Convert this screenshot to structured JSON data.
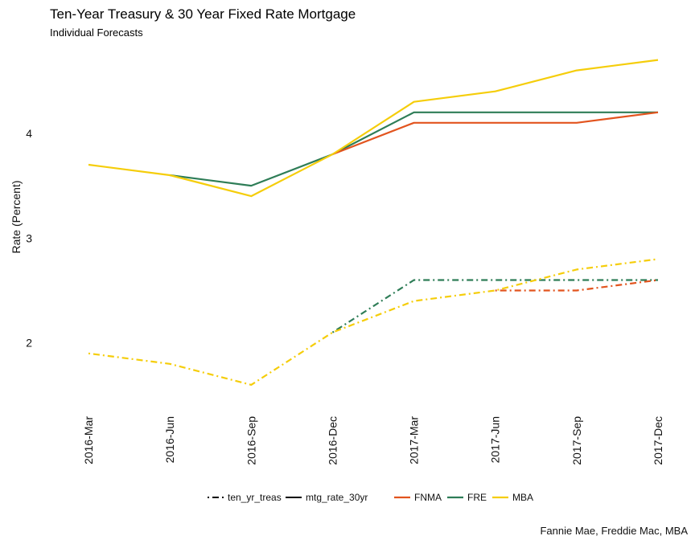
{
  "chart_data": {
    "type": "line",
    "title": "Ten-Year Treasury & 30 Year Fixed Rate Mortgage",
    "subtitle": "Individual Forecasts",
    "ylabel": "Rate (Percent)",
    "xlabel": "",
    "caption": "Fannie Mae, Freddie Mac, MBA",
    "categories": [
      "2016-Mar",
      "2016-Jun",
      "2016-Sep",
      "2016-Dec",
      "2017-Mar",
      "2017-Jun",
      "2017-Sep",
      "2017-Dec"
    ],
    "ylim": [
      1.4,
      4.85
    ],
    "yticks": [
      2,
      3,
      4
    ],
    "grid": false,
    "legend_position": "bottom",
    "legend": {
      "linetypes": [
        {
          "label": "ten_yr_treas",
          "style": "dotdash"
        },
        {
          "label": "mtg_rate_30yr",
          "style": "solid"
        }
      ],
      "colors": [
        {
          "label": "FNMA",
          "color": "#E2541E"
        },
        {
          "label": "FRE",
          "color": "#2E7D57"
        },
        {
          "label": "MBA",
          "color": "#F5CD0A"
        }
      ]
    },
    "series": [
      {
        "source": "FRE",
        "measure": "mtg_rate_30yr",
        "color": "#2E7D57",
        "style": "solid",
        "values": [
          null,
          3.6,
          3.5,
          3.8,
          4.2,
          4.2,
          4.2,
          4.2
        ]
      },
      {
        "source": "FNMA",
        "measure": "mtg_rate_30yr",
        "color": "#E2541E",
        "style": "solid",
        "values": [
          null,
          null,
          null,
          3.8,
          4.1,
          4.1,
          4.1,
          4.2
        ]
      },
      {
        "source": "MBA",
        "measure": "mtg_rate_30yr",
        "color": "#F5CD0A",
        "style": "solid",
        "values": [
          3.7,
          3.6,
          3.4,
          3.8,
          4.3,
          4.4,
          4.6,
          4.7
        ]
      },
      {
        "source": "FRE",
        "measure": "ten_yr_treas",
        "color": "#2E7D57",
        "style": "dotdash",
        "values": [
          null,
          null,
          null,
          2.1,
          2.6,
          2.6,
          2.6,
          2.6
        ]
      },
      {
        "source": "FNMA",
        "measure": "ten_yr_treas",
        "color": "#E2541E",
        "style": "dotdash",
        "values": [
          null,
          null,
          null,
          null,
          null,
          2.5,
          2.5,
          2.6
        ]
      },
      {
        "source": "MBA",
        "measure": "ten_yr_treas",
        "color": "#F5CD0A",
        "style": "dotdash",
        "values": [
          1.9,
          1.8,
          1.6,
          2.1,
          2.4,
          2.5,
          2.7,
          2.8
        ]
      }
    ]
  }
}
